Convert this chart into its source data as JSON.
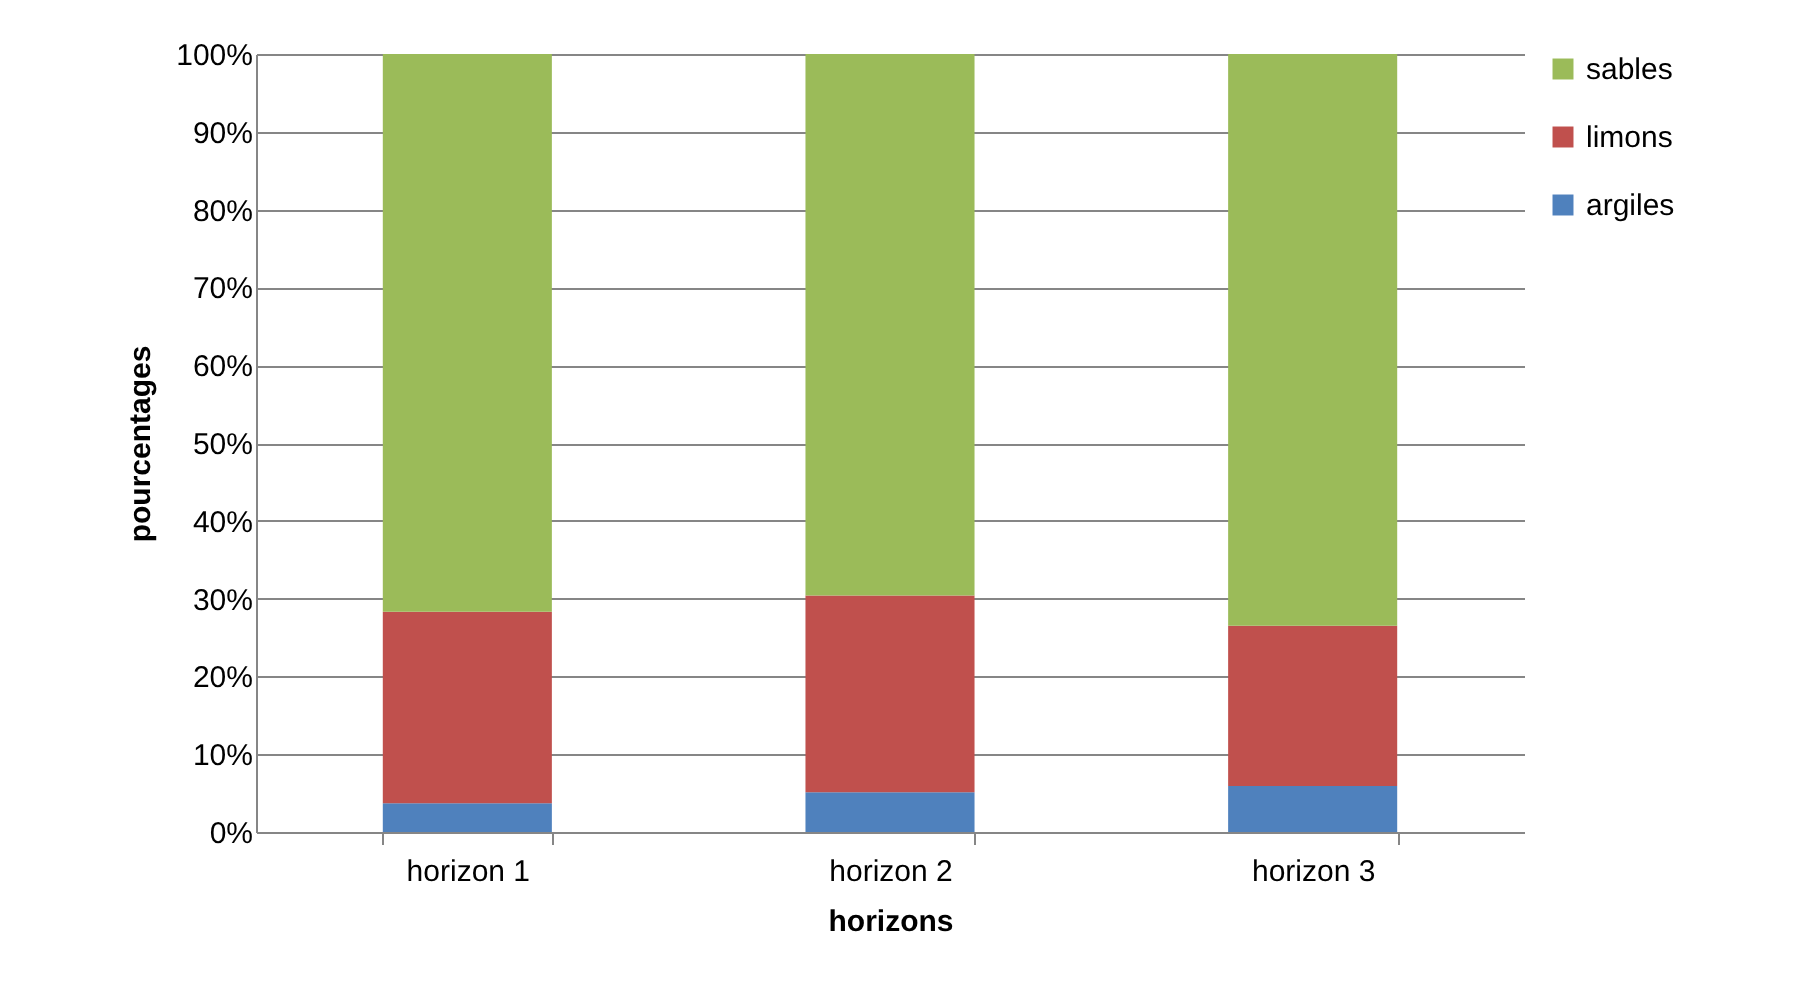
{
  "chart_data": {
    "type": "bar",
    "stacked": true,
    "xlabel": "horizons",
    "ylabel": "pourcentages",
    "categories": [
      "horizon 1",
      "horizon 2",
      "horizon 3"
    ],
    "series": [
      {
        "name": "argiles",
        "color": "#4f81bd",
        "values": [
          3.7,
          5.1,
          5.9
        ]
      },
      {
        "name": "limons",
        "color": "#c0504d",
        "values": [
          24.6,
          25.3,
          20.6
        ]
      },
      {
        "name": "sables",
        "color": "#9bbb59",
        "values": [
          71.7,
          69.6,
          73.5
        ]
      }
    ],
    "ylim": [
      0,
      100
    ],
    "yticks": [
      {
        "value": 0,
        "label": "0%"
      },
      {
        "value": 10,
        "label": "10%"
      },
      {
        "value": 20,
        "label": "20%"
      },
      {
        "value": 30,
        "label": "30%"
      },
      {
        "value": 40,
        "label": "40%"
      },
      {
        "value": 50,
        "label": "50%"
      },
      {
        "value": 60,
        "label": "60%"
      },
      {
        "value": 70,
        "label": "70%"
      },
      {
        "value": 80,
        "label": "80%"
      },
      {
        "value": 90,
        "label": "90%"
      },
      {
        "value": 100,
        "label": "100%"
      }
    ],
    "grid": "y",
    "legend": "right"
  }
}
